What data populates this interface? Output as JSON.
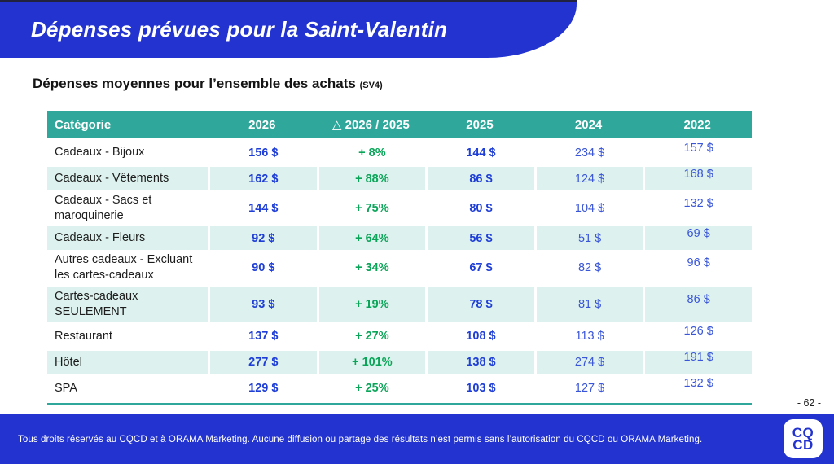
{
  "slide": {
    "title": "Dépenses prévues pour la Saint-Valentin",
    "subtitle": "Dépenses moyennes pour l’ensemble des achats",
    "subtitle_note": "(SV4)",
    "page_number": "- 62 -"
  },
  "table": {
    "columns": [
      "Catégorie",
      "2026",
      "△ 2026 / 2025",
      "2025",
      "2024",
      "2022"
    ],
    "rows": [
      {
        "category": "Cadeaux - Bijoux",
        "y2026": "156 $",
        "delta": "+ 8%",
        "y2025": "144 $",
        "y2024": "234 $",
        "y2022": "157 $"
      },
      {
        "category": "Cadeaux - Vêtements",
        "y2026": "162 $",
        "delta": "+ 88%",
        "y2025": "86 $",
        "y2024": "124 $",
        "y2022": "168 $"
      },
      {
        "category": "Cadeaux - Sacs et maroquinerie",
        "y2026": "144 $",
        "delta": "+ 75%",
        "y2025": "80 $",
        "y2024": "104 $",
        "y2022": "132 $"
      },
      {
        "category": "Cadeaux - Fleurs",
        "y2026": "92 $",
        "delta": "+ 64%",
        "y2025": "56 $",
        "y2024": "51 $",
        "y2022": "69 $"
      },
      {
        "category": "Autres cadeaux - Excluant les cartes-cadeaux",
        "y2026": "90 $",
        "delta": "+ 34%",
        "y2025": "67 $",
        "y2024": "82 $",
        "y2022": "96 $"
      },
      {
        "category": "Cartes-cadeaux SEULEMENT",
        "y2026": "93 $",
        "delta": "+ 19%",
        "y2025": "78 $",
        "y2024": "81 $",
        "y2022": "86 $"
      },
      {
        "category": "Restaurant",
        "y2026": "137 $",
        "delta": "+ 27%",
        "y2025": "108 $",
        "y2024": "113 $",
        "y2022": "126 $"
      },
      {
        "category": "Hôtel",
        "y2026": "277 $",
        "delta": "+ 101%",
        "y2025": "138 $",
        "y2024": "274 $",
        "y2022": "191 $"
      },
      {
        "category": "SPA",
        "y2026": "129 $",
        "delta": "+ 25%",
        "y2025": "103 $",
        "y2024": "127 $",
        "y2022": "132 $"
      }
    ]
  },
  "chart_data": {
    "type": "table",
    "title": "Dépenses moyennes pour l’ensemble des achats (SV4)",
    "columns": [
      "Catégorie",
      "2026",
      "△ 2026 / 2025",
      "2025",
      "2024",
      "2022"
    ],
    "rows": [
      [
        "Cadeaux - Bijoux",
        156,
        "+8%",
        144,
        234,
        157
      ],
      [
        "Cadeaux - Vêtements",
        162,
        "+88%",
        86,
        124,
        168
      ],
      [
        "Cadeaux - Sacs et maroquinerie",
        144,
        "+75%",
        80,
        104,
        132
      ],
      [
        "Cadeaux - Fleurs",
        92,
        "+64%",
        56,
        51,
        69
      ],
      [
        "Autres cadeaux - Excluant les cartes-cadeaux",
        90,
        "+34%",
        67,
        82,
        96
      ],
      [
        "Cartes-cadeaux SEULEMENT",
        93,
        "+19%",
        78,
        81,
        86
      ],
      [
        "Restaurant",
        137,
        "+27%",
        108,
        113,
        126
      ],
      [
        "Hôtel",
        277,
        "+101%",
        138,
        274,
        191
      ],
      [
        "SPA",
        129,
        "+25%",
        103,
        127,
        132
      ]
    ],
    "units": "$ CAD"
  },
  "footer": {
    "text": "Tous droits réservés au CQCD et à ORAMA Marketing. Aucune diffusion ou partage des résultats n’est permis sans l’autorisation du CQCD ou ORAMA Marketing.",
    "logo_line1": "CQ",
    "logo_line2": "CD"
  },
  "colors": {
    "brand_blue": "#2233cf",
    "table_header_teal": "#2fa79a",
    "row_stripe": "#ddf2ee",
    "value_blue_bold": "#1e3ed6",
    "value_blue_light": "#3a56d8",
    "delta_green": "#0aa558"
  }
}
